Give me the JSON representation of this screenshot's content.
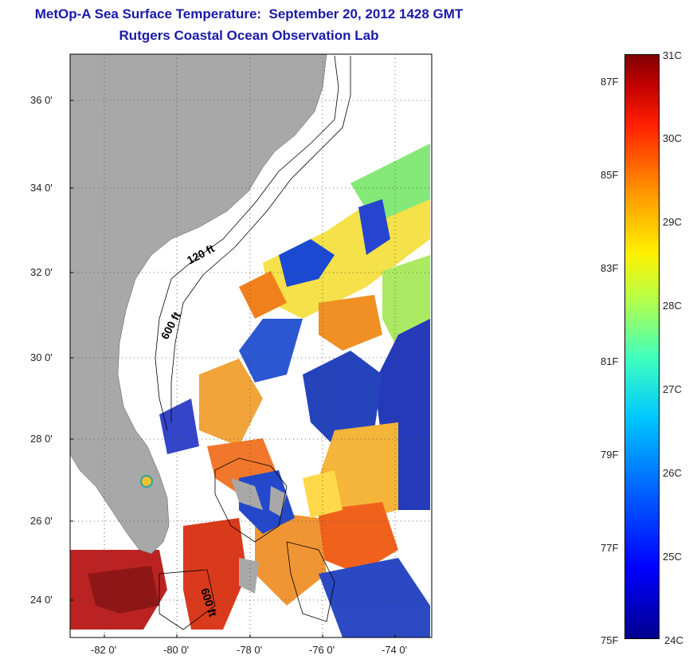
{
  "title": {
    "line1": "MetOp-A Sea Surface Temperature:  September 20, 2012 1428 GMT",
    "line2": "Rutgers Coastal Ocean Observation Lab"
  },
  "map": {
    "lat_ticks": [
      {
        "label": "36 0'",
        "value": 36
      },
      {
        "label": "34 0'",
        "value": 34
      },
      {
        "label": "32 0'",
        "value": 32
      },
      {
        "label": "30 0'",
        "value": 30
      },
      {
        "label": "28 0'",
        "value": 28
      },
      {
        "label": "26 0'",
        "value": 26
      },
      {
        "label": "24 0'",
        "value": 24
      }
    ],
    "lon_ticks": [
      {
        "label": "-82 0'",
        "value": -82
      },
      {
        "label": "-80 0'",
        "value": -80
      },
      {
        "label": "-78 0'",
        "value": -78
      },
      {
        "label": "-76 0'",
        "value": -76
      },
      {
        "label": "-74 0'",
        "value": -74
      }
    ],
    "lat_range": [
      23,
      37.2
    ],
    "lon_range": [
      -83,
      -73
    ],
    "contour_labels": [
      {
        "label": "120 ft",
        "lon": -79.3,
        "lat": 32.3
      },
      {
        "label": "600 ft",
        "lon": -79.9,
        "lat": 30.5
      },
      {
        "label": "600 ft",
        "lon": -79.1,
        "lat": 23.8
      }
    ],
    "colors": {
      "land": "#a8a8a8",
      "ocean_missing": "#ffffff",
      "grid": "#000000"
    }
  },
  "colorbar": {
    "celsius": [
      {
        "label": "31C",
        "value": 31
      },
      {
        "label": "30C",
        "value": 30
      },
      {
        "label": "29C",
        "value": 29
      },
      {
        "label": "28C",
        "value": 28
      },
      {
        "label": "27C",
        "value": 27
      },
      {
        "label": "26C",
        "value": 26
      },
      {
        "label": "25C",
        "value": 25
      },
      {
        "label": "24C",
        "value": 24
      }
    ],
    "fahrenheit": [
      {
        "label": "87F",
        "value": 87
      },
      {
        "label": "85F",
        "value": 85
      },
      {
        "label": "83F",
        "value": 83
      },
      {
        "label": "81F",
        "value": 81
      },
      {
        "label": "79F",
        "value": 79
      },
      {
        "label": "77F",
        "value": 77
      },
      {
        "label": "75F",
        "value": 75
      }
    ],
    "range_c": [
      24,
      31
    ]
  }
}
